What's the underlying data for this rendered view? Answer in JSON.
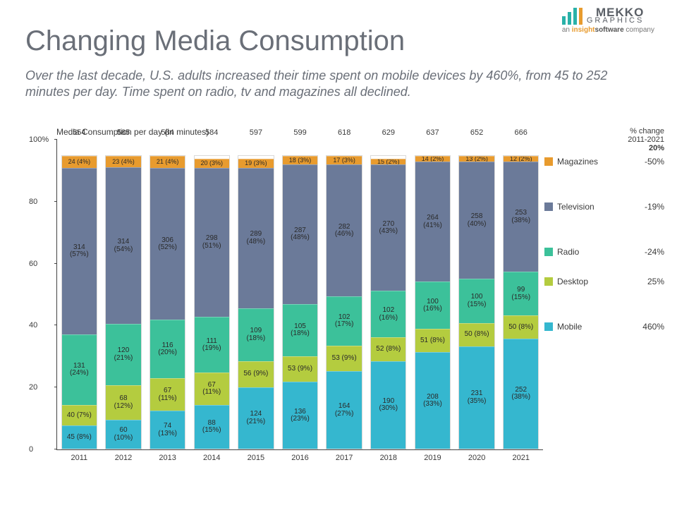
{
  "branding": {
    "name_top": "MEKKO",
    "name_bottom": "GRAPHICS",
    "tagline_prefix": "an ",
    "tagline_highlight": "insight",
    "tagline_mid": "software",
    "tagline_suffix": " company"
  },
  "title": "Changing Media Consumption",
  "subtitle": "Over the last decade, U.S. adults increased their time spent on mobile devices by 460%, from 45 to 252 minutes per day.  Time spent on radio, tv and magazines all declined.",
  "chart": {
    "type": "100pct_stacked_bar",
    "axis_title": "Media Consumption per day (in minutes)",
    "background_color": "#ffffff",
    "label_fontsize": 11,
    "value_fontsize": 10,
    "bar_width_ratio": 0.82,
    "y_axis": {
      "ticks": [
        0,
        20,
        40,
        60,
        80,
        100
      ],
      "labels": [
        "0",
        "20",
        "40",
        "60",
        "80",
        "100%"
      ]
    },
    "categories": [
      "2011",
      "2012",
      "2013",
      "2014",
      "2015",
      "2016",
      "2017",
      "2018",
      "2019",
      "2020",
      "2021"
    ],
    "totals": [
      554,
      585,
      584,
      584,
      597,
      599,
      618,
      629,
      637,
      652,
      666
    ],
    "series": [
      {
        "key": "mobile",
        "name": "Mobile",
        "color": "#35b7cf",
        "pct_change": "460%"
      },
      {
        "key": "desktop",
        "name": "Desktop",
        "color": "#b4cc3f",
        "pct_change": "25%"
      },
      {
        "key": "radio",
        "name": "Radio",
        "color": "#3cc19a",
        "pct_change": "-24%"
      },
      {
        "key": "television",
        "name": "Television",
        "color": "#6b7a99",
        "pct_change": "-19%"
      },
      {
        "key": "magazines",
        "name": "Magazines",
        "color": "#e89b2e",
        "pct_change": "-50%"
      }
    ],
    "data": [
      {
        "mobile": {
          "v": 45,
          "p": 8
        },
        "desktop": {
          "v": 40,
          "p": 7
        },
        "radio": {
          "v": 131,
          "p": 24
        },
        "television": {
          "v": 314,
          "p": 57
        },
        "magazines": {
          "v": 24,
          "p": 4
        }
      },
      {
        "mobile": {
          "v": 60,
          "p": 10
        },
        "desktop": {
          "v": 68,
          "p": 12
        },
        "radio": {
          "v": 120,
          "p": 21
        },
        "television": {
          "v": 314,
          "p": 54
        },
        "magazines": {
          "v": 23,
          "p": 4
        }
      },
      {
        "mobile": {
          "v": 74,
          "p": 13
        },
        "desktop": {
          "v": 67,
          "p": 11
        },
        "radio": {
          "v": 116,
          "p": 20
        },
        "television": {
          "v": 306,
          "p": 52
        },
        "magazines": {
          "v": 21,
          "p": 4
        }
      },
      {
        "mobile": {
          "v": 88,
          "p": 15
        },
        "desktop": {
          "v": 67,
          "p": 11
        },
        "radio": {
          "v": 111,
          "p": 19
        },
        "television": {
          "v": 298,
          "p": 51
        },
        "magazines": {
          "v": 20,
          "p": 3
        }
      },
      {
        "mobile": {
          "v": 124,
          "p": 21
        },
        "desktop": {
          "v": 56,
          "p": 9
        },
        "radio": {
          "v": 109,
          "p": 18
        },
        "television": {
          "v": 289,
          "p": 48
        },
        "magazines": {
          "v": 19,
          "p": 3
        }
      },
      {
        "mobile": {
          "v": 136,
          "p": 23
        },
        "desktop": {
          "v": 53,
          "p": 9
        },
        "radio": {
          "v": 105,
          "p": 18
        },
        "television": {
          "v": 287,
          "p": 48
        },
        "magazines": {
          "v": 18,
          "p": 3
        }
      },
      {
        "mobile": {
          "v": 164,
          "p": 27
        },
        "desktop": {
          "v": 53,
          "p": 9
        },
        "radio": {
          "v": 102,
          "p": 17
        },
        "television": {
          "v": 282,
          "p": 46
        },
        "magazines": {
          "v": 17,
          "p": 3
        }
      },
      {
        "mobile": {
          "v": 190,
          "p": 30
        },
        "desktop": {
          "v": 52,
          "p": 8
        },
        "radio": {
          "v": 102,
          "p": 16
        },
        "television": {
          "v": 270,
          "p": 43
        },
        "magazines": {
          "v": 15,
          "p": 2
        }
      },
      {
        "mobile": {
          "v": 208,
          "p": 33
        },
        "desktop": {
          "v": 51,
          "p": 8
        },
        "radio": {
          "v": 100,
          "p": 16
        },
        "television": {
          "v": 264,
          "p": 41
        },
        "magazines": {
          "v": 14,
          "p": 2
        }
      },
      {
        "mobile": {
          "v": 231,
          "p": 35
        },
        "desktop": {
          "v": 50,
          "p": 8
        },
        "radio": {
          "v": 100,
          "p": 15
        },
        "television": {
          "v": 258,
          "p": 40
        },
        "magazines": {
          "v": 13,
          "p": 2
        }
      },
      {
        "mobile": {
          "v": 252,
          "p": 38
        },
        "desktop": {
          "v": 50,
          "p": 8
        },
        "radio": {
          "v": 99,
          "p": 15
        },
        "television": {
          "v": 253,
          "p": 38
        },
        "magazines": {
          "v": 12,
          "p": 2
        }
      }
    ],
    "legend_header": {
      "line1": "% change",
      "line2": "2011-2021",
      "total": "20%"
    }
  }
}
